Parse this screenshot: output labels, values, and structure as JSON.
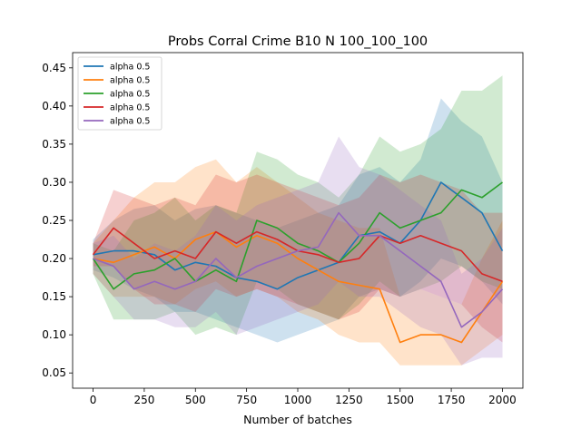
{
  "chart_data": {
    "type": "line",
    "title": "Probs Corral Crime B10 N 100_100_100",
    "xlabel": "Number of batches",
    "ylabel": "",
    "xlim": [
      -100,
      2100
    ],
    "ylim": [
      0.03,
      0.47
    ],
    "xticks": [
      0,
      250,
      500,
      750,
      1000,
      1250,
      1500,
      1750,
      2000
    ],
    "xtick_labels": [
      "0",
      "250",
      "500",
      "750",
      "1000",
      "1250",
      "1500",
      "1750",
      "2000"
    ],
    "yticks": [
      0.05,
      0.1,
      0.15,
      0.2,
      0.25,
      0.3,
      0.35,
      0.4,
      0.45
    ],
    "ytick_labels": [
      "0.05",
      "0.10",
      "0.15",
      "0.20",
      "0.25",
      "0.30",
      "0.35",
      "0.40",
      "0.45"
    ],
    "grid": false,
    "legend_position": "top-left",
    "x": [
      0,
      100,
      200,
      300,
      400,
      500,
      600,
      700,
      800,
      900,
      1000,
      1100,
      1200,
      1300,
      1400,
      1500,
      1600,
      1700,
      1800,
      1900,
      2000
    ],
    "series": [
      {
        "name": "alpha 0.5",
        "color": "#1f77b4",
        "values": [
          0.205,
          0.21,
          0.21,
          0.205,
          0.185,
          0.195,
          0.19,
          0.175,
          0.17,
          0.16,
          0.175,
          0.185,
          0.195,
          0.23,
          0.235,
          0.22,
          0.25,
          0.3,
          0.28,
          0.26,
          0.21
        ],
        "lower": [
          0.185,
          0.175,
          0.16,
          0.15,
          0.13,
          0.13,
          0.12,
          0.11,
          0.1,
          0.09,
          0.1,
          0.11,
          0.12,
          0.15,
          0.16,
          0.15,
          0.17,
          0.2,
          0.19,
          0.17,
          0.14
        ],
        "upper": [
          0.225,
          0.25,
          0.265,
          0.27,
          0.25,
          0.265,
          0.27,
          0.26,
          0.25,
          0.24,
          0.25,
          0.26,
          0.27,
          0.31,
          0.32,
          0.3,
          0.33,
          0.41,
          0.38,
          0.36,
          0.3
        ]
      },
      {
        "name": "alpha 0.5",
        "color": "#ff7f0e",
        "values": [
          0.2,
          0.195,
          0.205,
          0.215,
          0.2,
          0.225,
          0.235,
          0.215,
          0.23,
          0.22,
          0.2,
          0.185,
          0.17,
          0.165,
          0.16,
          0.09,
          0.1,
          0.1,
          0.09,
          0.13,
          0.17
        ],
        "lower": [
          0.18,
          0.15,
          0.15,
          0.15,
          0.14,
          0.16,
          0.17,
          0.15,
          0.16,
          0.15,
          0.13,
          0.12,
          0.1,
          0.09,
          0.09,
          0.06,
          0.06,
          0.06,
          0.06,
          0.08,
          0.1
        ],
        "upper": [
          0.22,
          0.25,
          0.28,
          0.3,
          0.3,
          0.32,
          0.33,
          0.3,
          0.32,
          0.3,
          0.28,
          0.26,
          0.25,
          0.24,
          0.24,
          0.15,
          0.16,
          0.15,
          0.14,
          0.2,
          0.25
        ]
      },
      {
        "name": "alpha 0.5",
        "color": "#2ca02c",
        "values": [
          0.2,
          0.16,
          0.18,
          0.185,
          0.2,
          0.17,
          0.185,
          0.17,
          0.25,
          0.24,
          0.22,
          0.21,
          0.195,
          0.22,
          0.26,
          0.24,
          0.25,
          0.26,
          0.29,
          0.28,
          0.3
        ],
        "lower": [
          0.18,
          0.12,
          0.12,
          0.12,
          0.13,
          0.1,
          0.11,
          0.1,
          0.17,
          0.16,
          0.14,
          0.13,
          0.12,
          0.14,
          0.17,
          0.15,
          0.16,
          0.17,
          0.19,
          0.17,
          0.16
        ],
        "upper": [
          0.22,
          0.21,
          0.25,
          0.26,
          0.28,
          0.25,
          0.27,
          0.26,
          0.34,
          0.33,
          0.31,
          0.3,
          0.28,
          0.31,
          0.36,
          0.34,
          0.35,
          0.37,
          0.42,
          0.42,
          0.44
        ]
      },
      {
        "name": "alpha 0.5",
        "color": "#d62728",
        "values": [
          0.205,
          0.24,
          0.22,
          0.2,
          0.21,
          0.2,
          0.235,
          0.22,
          0.235,
          0.225,
          0.21,
          0.205,
          0.195,
          0.2,
          0.23,
          0.22,
          0.23,
          0.22,
          0.21,
          0.18,
          0.17
        ],
        "lower": [
          0.19,
          0.19,
          0.16,
          0.14,
          0.14,
          0.13,
          0.16,
          0.15,
          0.16,
          0.15,
          0.14,
          0.13,
          0.12,
          0.13,
          0.16,
          0.15,
          0.16,
          0.15,
          0.14,
          0.11,
          0.09
        ],
        "upper": [
          0.22,
          0.29,
          0.28,
          0.27,
          0.28,
          0.27,
          0.31,
          0.3,
          0.31,
          0.3,
          0.29,
          0.28,
          0.27,
          0.28,
          0.31,
          0.3,
          0.31,
          0.3,
          0.29,
          0.26,
          0.26
        ]
      },
      {
        "name": "alpha 0.5",
        "color": "#9467bd",
        "values": [
          0.2,
          0.19,
          0.16,
          0.17,
          0.16,
          0.17,
          0.2,
          0.175,
          0.19,
          0.2,
          0.21,
          0.215,
          0.26,
          0.23,
          0.23,
          0.21,
          0.19,
          0.17,
          0.11,
          0.13,
          0.16
        ],
        "lower": [
          0.18,
          0.15,
          0.12,
          0.12,
          0.11,
          0.11,
          0.13,
          0.1,
          0.11,
          0.12,
          0.13,
          0.14,
          0.17,
          0.15,
          0.15,
          0.13,
          0.11,
          0.1,
          0.06,
          0.07,
          0.07
        ],
        "upper": [
          0.22,
          0.23,
          0.2,
          0.22,
          0.21,
          0.23,
          0.27,
          0.25,
          0.27,
          0.28,
          0.29,
          0.3,
          0.36,
          0.32,
          0.31,
          0.29,
          0.27,
          0.25,
          0.18,
          0.2,
          0.24
        ]
      }
    ]
  }
}
